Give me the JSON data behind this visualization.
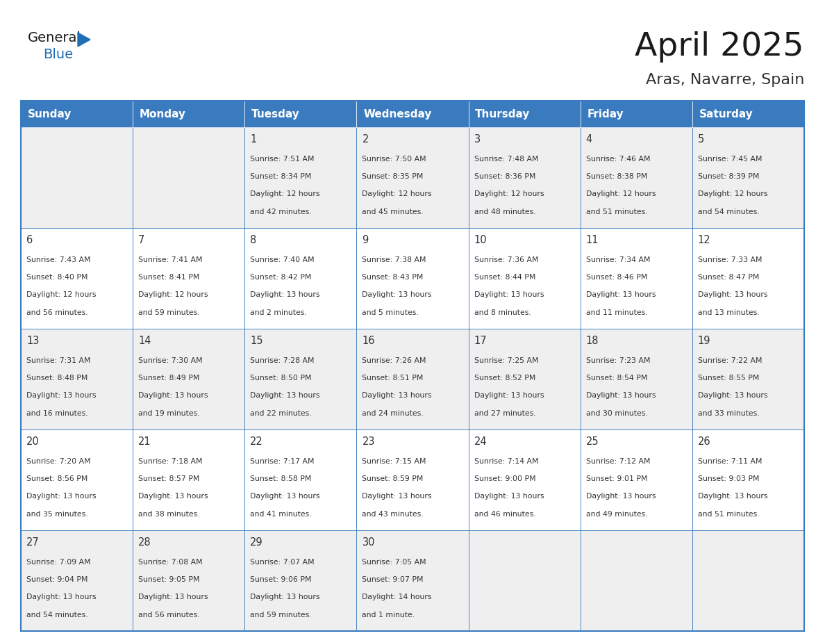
{
  "title": "April 2025",
  "subtitle": "Aras, Navarre, Spain",
  "days_of_week": [
    "Sunday",
    "Monday",
    "Tuesday",
    "Wednesday",
    "Thursday",
    "Friday",
    "Saturday"
  ],
  "header_bg_color": "#3a7bbf",
  "header_text_color": "#ffffff",
  "cell_bg_color_even": "#efefef",
  "cell_bg_color_odd": "#ffffff",
  "border_color": "#3a7bbf",
  "title_color": "#1a1a1a",
  "subtitle_color": "#333333",
  "text_color": "#333333",
  "logo_general_color": "#1a1a1a",
  "logo_blue_color": "#1e6eb5",
  "days": [
    {
      "date": 1,
      "col": 2,
      "row": 0,
      "sunrise": "7:51 AM",
      "sunset": "8:34 PM",
      "daylight_hours": 12,
      "daylight_minutes": 42
    },
    {
      "date": 2,
      "col": 3,
      "row": 0,
      "sunrise": "7:50 AM",
      "sunset": "8:35 PM",
      "daylight_hours": 12,
      "daylight_minutes": 45
    },
    {
      "date": 3,
      "col": 4,
      "row": 0,
      "sunrise": "7:48 AM",
      "sunset": "8:36 PM",
      "daylight_hours": 12,
      "daylight_minutes": 48
    },
    {
      "date": 4,
      "col": 5,
      "row": 0,
      "sunrise": "7:46 AM",
      "sunset": "8:38 PM",
      "daylight_hours": 12,
      "daylight_minutes": 51
    },
    {
      "date": 5,
      "col": 6,
      "row": 0,
      "sunrise": "7:45 AM",
      "sunset": "8:39 PM",
      "daylight_hours": 12,
      "daylight_minutes": 54
    },
    {
      "date": 6,
      "col": 0,
      "row": 1,
      "sunrise": "7:43 AM",
      "sunset": "8:40 PM",
      "daylight_hours": 12,
      "daylight_minutes": 56
    },
    {
      "date": 7,
      "col": 1,
      "row": 1,
      "sunrise": "7:41 AM",
      "sunset": "8:41 PM",
      "daylight_hours": 12,
      "daylight_minutes": 59
    },
    {
      "date": 8,
      "col": 2,
      "row": 1,
      "sunrise": "7:40 AM",
      "sunset": "8:42 PM",
      "daylight_hours": 13,
      "daylight_minutes": 2
    },
    {
      "date": 9,
      "col": 3,
      "row": 1,
      "sunrise": "7:38 AM",
      "sunset": "8:43 PM",
      "daylight_hours": 13,
      "daylight_minutes": 5
    },
    {
      "date": 10,
      "col": 4,
      "row": 1,
      "sunrise": "7:36 AM",
      "sunset": "8:44 PM",
      "daylight_hours": 13,
      "daylight_minutes": 8
    },
    {
      "date": 11,
      "col": 5,
      "row": 1,
      "sunrise": "7:34 AM",
      "sunset": "8:46 PM",
      "daylight_hours": 13,
      "daylight_minutes": 11
    },
    {
      "date": 12,
      "col": 6,
      "row": 1,
      "sunrise": "7:33 AM",
      "sunset": "8:47 PM",
      "daylight_hours": 13,
      "daylight_minutes": 13
    },
    {
      "date": 13,
      "col": 0,
      "row": 2,
      "sunrise": "7:31 AM",
      "sunset": "8:48 PM",
      "daylight_hours": 13,
      "daylight_minutes": 16
    },
    {
      "date": 14,
      "col": 1,
      "row": 2,
      "sunrise": "7:30 AM",
      "sunset": "8:49 PM",
      "daylight_hours": 13,
      "daylight_minutes": 19
    },
    {
      "date": 15,
      "col": 2,
      "row": 2,
      "sunrise": "7:28 AM",
      "sunset": "8:50 PM",
      "daylight_hours": 13,
      "daylight_minutes": 22
    },
    {
      "date": 16,
      "col": 3,
      "row": 2,
      "sunrise": "7:26 AM",
      "sunset": "8:51 PM",
      "daylight_hours": 13,
      "daylight_minutes": 24
    },
    {
      "date": 17,
      "col": 4,
      "row": 2,
      "sunrise": "7:25 AM",
      "sunset": "8:52 PM",
      "daylight_hours": 13,
      "daylight_minutes": 27
    },
    {
      "date": 18,
      "col": 5,
      "row": 2,
      "sunrise": "7:23 AM",
      "sunset": "8:54 PM",
      "daylight_hours": 13,
      "daylight_minutes": 30
    },
    {
      "date": 19,
      "col": 6,
      "row": 2,
      "sunrise": "7:22 AM",
      "sunset": "8:55 PM",
      "daylight_hours": 13,
      "daylight_minutes": 33
    },
    {
      "date": 20,
      "col": 0,
      "row": 3,
      "sunrise": "7:20 AM",
      "sunset": "8:56 PM",
      "daylight_hours": 13,
      "daylight_minutes": 35
    },
    {
      "date": 21,
      "col": 1,
      "row": 3,
      "sunrise": "7:18 AM",
      "sunset": "8:57 PM",
      "daylight_hours": 13,
      "daylight_minutes": 38
    },
    {
      "date": 22,
      "col": 2,
      "row": 3,
      "sunrise": "7:17 AM",
      "sunset": "8:58 PM",
      "daylight_hours": 13,
      "daylight_minutes": 41
    },
    {
      "date": 23,
      "col": 3,
      "row": 3,
      "sunrise": "7:15 AM",
      "sunset": "8:59 PM",
      "daylight_hours": 13,
      "daylight_minutes": 43
    },
    {
      "date": 24,
      "col": 4,
      "row": 3,
      "sunrise": "7:14 AM",
      "sunset": "9:00 PM",
      "daylight_hours": 13,
      "daylight_minutes": 46
    },
    {
      "date": 25,
      "col": 5,
      "row": 3,
      "sunrise": "7:12 AM",
      "sunset": "9:01 PM",
      "daylight_hours": 13,
      "daylight_minutes": 49
    },
    {
      "date": 26,
      "col": 6,
      "row": 3,
      "sunrise": "7:11 AM",
      "sunset": "9:03 PM",
      "daylight_hours": 13,
      "daylight_minutes": 51
    },
    {
      "date": 27,
      "col": 0,
      "row": 4,
      "sunrise": "7:09 AM",
      "sunset": "9:04 PM",
      "daylight_hours": 13,
      "daylight_minutes": 54
    },
    {
      "date": 28,
      "col": 1,
      "row": 4,
      "sunrise": "7:08 AM",
      "sunset": "9:05 PM",
      "daylight_hours": 13,
      "daylight_minutes": 56
    },
    {
      "date": 29,
      "col": 2,
      "row": 4,
      "sunrise": "7:07 AM",
      "sunset": "9:06 PM",
      "daylight_hours": 13,
      "daylight_minutes": 59
    },
    {
      "date": 30,
      "col": 3,
      "row": 4,
      "sunrise": "7:05 AM",
      "sunset": "9:07 PM",
      "daylight_hours": 14,
      "daylight_minutes": 1
    }
  ]
}
